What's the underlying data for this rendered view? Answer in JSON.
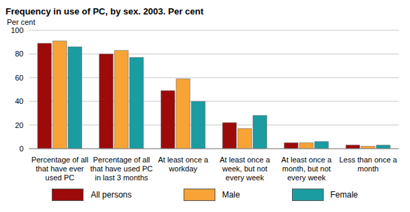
{
  "chart_data": {
    "type": "bar",
    "title": "Frequency in use of PC, by sex. 2003. Per cent",
    "y_label": "Per cent",
    "categories": [
      "Percentage of all that have ever used PC",
      "Percentage of all that have used PC in last 3 months",
      "At least once a workday",
      "At least once a week, but not every week",
      "At least once a month, but not every week",
      "Less than once a month"
    ],
    "series": [
      {
        "name": "All persons",
        "color": "#9c0a0a",
        "values": [
          89,
          80,
          49,
          22,
          5,
          3
        ]
      },
      {
        "name": "Male",
        "color": "#f7a336",
        "values": [
          91,
          83,
          59,
          17,
          5,
          2
        ]
      },
      {
        "name": "Female",
        "color": "#1b9ca0",
        "values": [
          86,
          77,
          40,
          28,
          6,
          3
        ]
      }
    ],
    "ylim": [
      0,
      100
    ],
    "yticks": [
      0,
      20,
      40,
      60,
      80,
      100
    ],
    "grid": true,
    "legend": "bottom"
  }
}
